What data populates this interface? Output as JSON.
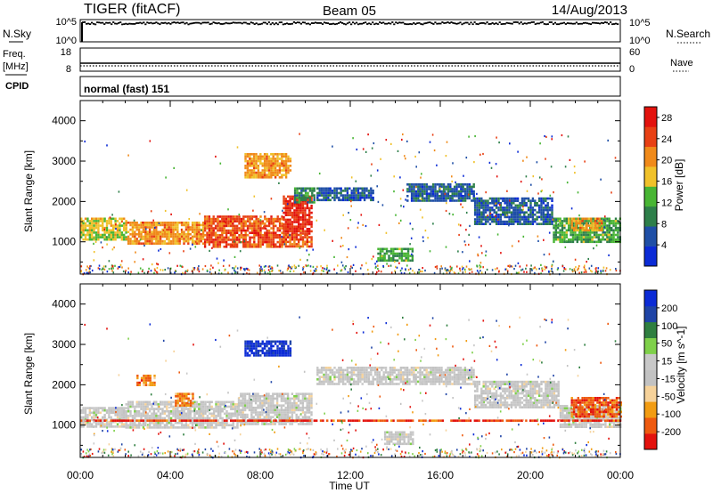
{
  "header": {
    "radar": "TIGER (fitACF)",
    "beam": "Beam 05",
    "date": "14/Aug/2013"
  },
  "top_panels": {
    "nsky": {
      "label": "N.Sky",
      "ticks_left": [
        "10^5",
        "10^0"
      ],
      "ticks_right": [
        "10^5",
        "10^0"
      ],
      "right_label": "N.Search"
    },
    "freq": {
      "label_line1": "Freq.",
      "label_line2": "[MHz]",
      "ticks_left": [
        "18",
        "8"
      ],
      "ticks_right": [
        "60",
        "0"
      ],
      "right_label": "Nave"
    },
    "cpid": {
      "label": "CPID",
      "value": "normal (fast) 151"
    }
  },
  "colors": {
    "power": [
      "#0b2bd6",
      "#1f4fa6",
      "#2e7f4a",
      "#48b534",
      "#f0c12a",
      "#f08a1a",
      "#e84014",
      "#e3120d"
    ],
    "velocity": [
      "#e3120d",
      "#ee5a0f",
      "#f29c12",
      "#f6d29a",
      "#c2c2c2",
      "#c8c8c8",
      "#7fd04a",
      "#2f7f40",
      "#1f44a6",
      "#0b2bd6"
    ]
  },
  "chart_data": [
    {
      "type": "heatmap",
      "name": "power",
      "xlabel": "",
      "ylabel": "Slant Range [km]",
      "xlim": [
        0,
        24
      ],
      "ylim": [
        200,
        4500
      ],
      "yticks": [
        "1000",
        "2000",
        "3000",
        "4000"
      ],
      "colorbar": {
        "label": "Power [dB]",
        "levels": [
          "4",
          "8",
          "12",
          "16",
          "20",
          "24",
          "28"
        ],
        "range": [
          0,
          30
        ]
      },
      "regions": [
        {
          "x": [
            0.0,
            2.0
          ],
          "y": [
            1050,
            1600
          ],
          "value": 16
        },
        {
          "x": [
            2.0,
            5.5
          ],
          "y": [
            950,
            1500
          ],
          "value": 20
        },
        {
          "x": [
            5.5,
            9.0
          ],
          "y": [
            900,
            1650
          ],
          "value": 24
        },
        {
          "x": [
            9.0,
            10.3
          ],
          "y": [
            1200,
            2150
          ],
          "value": 26
        },
        {
          "x": [
            9.0,
            10.3
          ],
          "y": [
            900,
            1200
          ],
          "value": 24
        },
        {
          "x": [
            7.3,
            9.3
          ],
          "y": [
            2600,
            3200
          ],
          "value": 20
        },
        {
          "x": [
            9.5,
            10.4
          ],
          "y": [
            2000,
            2350
          ],
          "value": 10
        },
        {
          "x": [
            13.2,
            14.8
          ],
          "y": [
            550,
            850
          ],
          "value": 12
        },
        {
          "x": [
            10.5,
            13.0
          ],
          "y": [
            2050,
            2350
          ],
          "value": 6
        },
        {
          "x": [
            14.5,
            17.5
          ],
          "y": [
            2000,
            2450
          ],
          "value": 6
        },
        {
          "x": [
            17.5,
            21.0
          ],
          "y": [
            1450,
            2100
          ],
          "value": 6
        },
        {
          "x": [
            21.0,
            24.0
          ],
          "y": [
            1000,
            1600
          ],
          "value": 12
        },
        {
          "x": [
            21.8,
            23.2
          ],
          "y": [
            1300,
            1600
          ],
          "value": 20
        }
      ]
    },
    {
      "type": "heatmap",
      "name": "velocity",
      "xlabel": "Time UT",
      "ylabel": "Slant Range [km]",
      "xlim": [
        0,
        24
      ],
      "ylim": [
        200,
        4500
      ],
      "yticks": [
        "1000",
        "2000",
        "3000",
        "4000"
      ],
      "xticks": [
        "00:00",
        "04:00",
        "08:00",
        "12:00",
        "16:00",
        "20:00",
        "00:00"
      ],
      "colorbar": {
        "label": "Velocity [m s^-1]",
        "levels": [
          "-200",
          "-100",
          "-50",
          "-15",
          "15",
          "50",
          "100",
          "200"
        ],
        "range": [
          -250,
          250
        ]
      },
      "regions": [
        {
          "x": [
            0.0,
            2.0
          ],
          "y": [
            950,
            1450
          ],
          "value": 0
        },
        {
          "x": [
            2.0,
            7.0
          ],
          "y": [
            950,
            1600
          ],
          "value": 0
        },
        {
          "x": [
            7.0,
            10.3
          ],
          "y": [
            1000,
            1800
          ],
          "value": 0
        },
        {
          "x": [
            7.3,
            9.3
          ],
          "y": [
            2700,
            3100
          ],
          "value": 220
        },
        {
          "x": [
            4.2,
            5.0
          ],
          "y": [
            1500,
            1800
          ],
          "value": -150
        },
        {
          "x": [
            2.5,
            3.3
          ],
          "y": [
            2000,
            2250
          ],
          "value": -150
        },
        {
          "x": [
            13.5,
            14.8
          ],
          "y": [
            550,
            850
          ],
          "value": 0
        },
        {
          "x": [
            10.5,
            17.5
          ],
          "y": [
            2000,
            2450
          ],
          "value": 0
        },
        {
          "x": [
            17.5,
            21.3
          ],
          "y": [
            1450,
            2100
          ],
          "value": 0
        },
        {
          "x": [
            21.3,
            24.0
          ],
          "y": [
            950,
            1500
          ],
          "value": 0
        },
        {
          "x": [
            21.8,
            24.0
          ],
          "y": [
            1200,
            1700
          ],
          "value": -180
        },
        {
          "x": [
            0.0,
            24.0
          ],
          "y": [
            1120,
            1140
          ],
          "value": -200
        }
      ]
    }
  ]
}
